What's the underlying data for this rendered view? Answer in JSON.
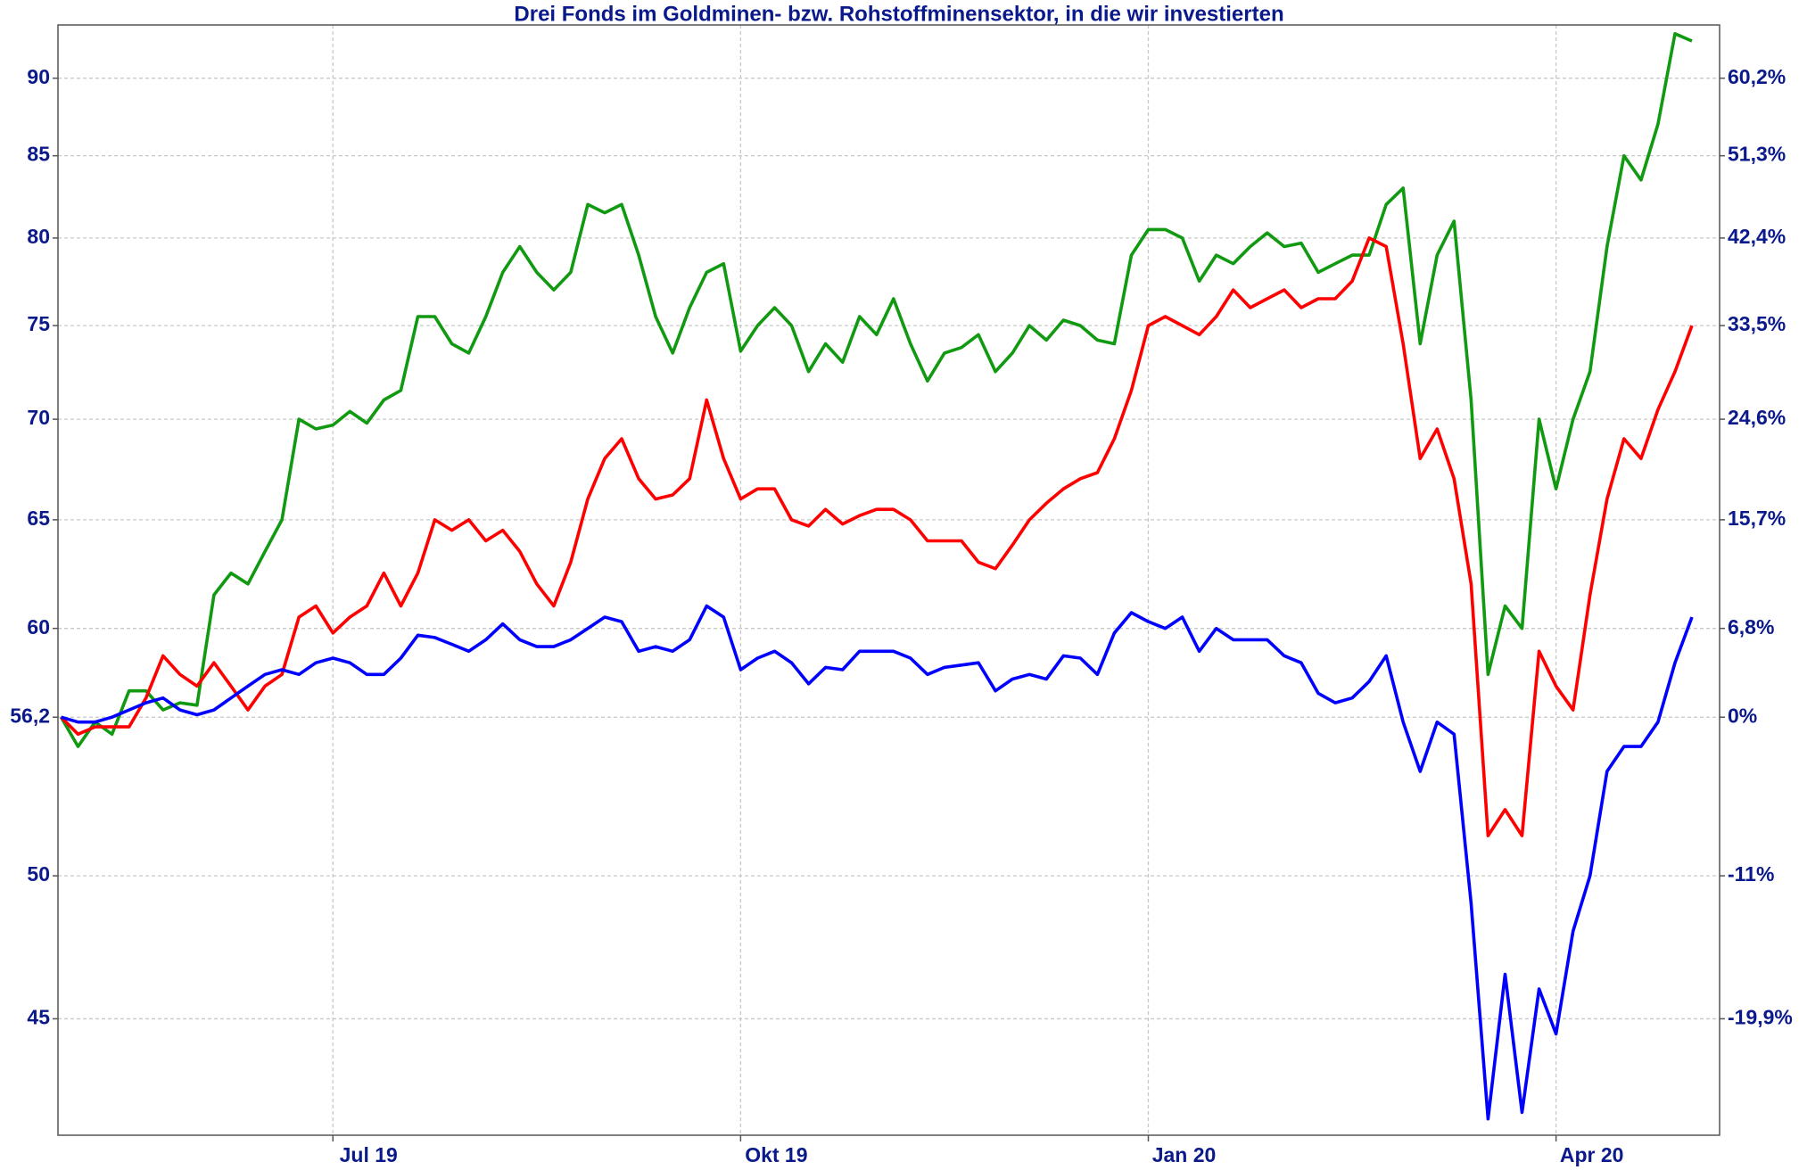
{
  "chart_data": {
    "type": "line",
    "title": "Drei Fonds im Goldminen- bzw. Rohstoffminensektor, in die wir investierten",
    "categories": [
      null,
      null,
      null,
      null,
      null,
      null,
      null,
      null,
      null,
      null,
      null,
      null,
      null,
      null,
      null,
      null,
      "Jul 19",
      null,
      null,
      null,
      null,
      null,
      null,
      null,
      null,
      null,
      null,
      null,
      null,
      null,
      null,
      null,
      null,
      null,
      null,
      null,
      null,
      null,
      null,
      null,
      "Okt 19",
      null,
      null,
      null,
      null,
      null,
      null,
      null,
      null,
      null,
      null,
      null,
      null,
      null,
      null,
      null,
      null,
      null,
      null,
      null,
      null,
      null,
      null,
      null,
      "Jan 20",
      null,
      null,
      null,
      null,
      null,
      null,
      null,
      null,
      null,
      null,
      null,
      null,
      null,
      null,
      null,
      null,
      null,
      null,
      null,
      null,
      null,
      null,
      null,
      "Apr 20",
      null,
      null,
      null,
      null,
      null,
      null,
      null,
      null
    ],
    "series": [
      {
        "color": "#119a11",
        "values": [
          56.2,
          55,
          56,
          55.5,
          57.3,
          57.3,
          56.5,
          56.8,
          56.7,
          61.5,
          62.5,
          62,
          63.5,
          65,
          70,
          69.5,
          69.7,
          70.4,
          69.8,
          71,
          71.5,
          75.5,
          75.5,
          74,
          73.5,
          75.5,
          78,
          79.5,
          78,
          77,
          78,
          82,
          81.5,
          82,
          79,
          75.5,
          73.5,
          76,
          78,
          78.5,
          73.6,
          75,
          76,
          75,
          72.5,
          74,
          73,
          75.5,
          74.5,
          76.5,
          74,
          72,
          73.5,
          73.8,
          74.5,
          72.5,
          73.5,
          75,
          74.2,
          75.3,
          75,
          74.2,
          74,
          79,
          80.5,
          80.5,
          80,
          77.5,
          79,
          78.5,
          79.5,
          80.3,
          79.5,
          79.7,
          78,
          78.5,
          79,
          79,
          82,
          83,
          74,
          79,
          81,
          71,
          58,
          61,
          60,
          70,
          66.5,
          70,
          72.5,
          79.5,
          85,
          83.5,
          87,
          93,
          92.5
        ]
      },
      {
        "color": "#ff0000",
        "values": [
          56.2,
          55.5,
          55.8,
          55.8,
          55.8,
          57,
          58.8,
          58,
          57.5,
          58.5,
          57.5,
          56.5,
          57.5,
          58,
          60.5,
          61,
          59.8,
          60.5,
          61,
          62.5,
          61,
          62.5,
          65,
          64.5,
          65,
          64,
          64.5,
          63.5,
          62,
          61,
          63,
          66,
          68,
          69,
          67,
          66,
          66.2,
          67,
          71,
          68,
          66,
          66.5,
          66.5,
          65,
          64.7,
          65.5,
          64.8,
          65.2,
          65.5,
          65.5,
          65,
          64,
          64,
          64,
          63,
          62.7,
          63.8,
          65,
          65.8,
          66.5,
          67,
          67.3,
          69,
          71.5,
          75,
          75.5,
          75,
          74.5,
          75.5,
          77,
          76,
          76.5,
          77,
          76,
          76.5,
          76.5,
          77.5,
          80,
          79.5,
          74,
          68,
          69.5,
          67,
          62,
          51.5,
          52.5,
          51.5,
          59,
          57.5,
          56.5,
          61.5,
          66,
          69,
          68,
          70.5,
          72.5,
          75
        ]
      },
      {
        "color": "#0000ff",
        "values": [
          56.2,
          56,
          56,
          56.2,
          56.5,
          56.8,
          57,
          56.5,
          56.3,
          56.5,
          57,
          57.5,
          58,
          58.2,
          58,
          58.5,
          58.7,
          58.5,
          58,
          58,
          58.7,
          59.7,
          59.6,
          59.3,
          59,
          59.5,
          60.2,
          59.5,
          59.2,
          59.2,
          59.5,
          60,
          60.5,
          60.3,
          59,
          59.2,
          59,
          59.5,
          61,
          60.5,
          58.2,
          58.7,
          59,
          58.5,
          57.6,
          58.3,
          58.2,
          59,
          59,
          59,
          58.7,
          58,
          58.3,
          58.4,
          58.5,
          57.3,
          57.8,
          58,
          57.8,
          58.8,
          58.7,
          58,
          59.8,
          60.7,
          60.3,
          60,
          60.5,
          59,
          60,
          59.5,
          59.5,
          59.5,
          58.8,
          58.5,
          57.2,
          56.8,
          57,
          57.7,
          58.8,
          56,
          54,
          56,
          55.5,
          49,
          41.8,
          46.5,
          42,
          46,
          44.5,
          48,
          50,
          54,
          55,
          55,
          56,
          58.5,
          60.5
        ]
      }
    ],
    "yscale": "log",
    "ylim": [
      41.3,
      93.6
    ],
    "yticks": [
      45,
      50,
      {
        "value": 56.2,
        "label": "56,2"
      },
      60,
      65,
      70,
      75,
      80,
      85,
      90
    ],
    "y2lim": [
      41.3,
      93.6
    ],
    "y2ticks": [
      {
        "value": 45,
        "label": "-19,9%"
      },
      {
        "value": 50,
        "label": "-11%"
      },
      {
        "value": 56.2,
        "label": "0%"
      },
      {
        "value": 60,
        "label": "6,8%"
      },
      {
        "value": 65,
        "label": "15,7%"
      },
      {
        "value": 70,
        "label": "24,6%"
      },
      {
        "value": 75,
        "label": "33,5%"
      },
      {
        "value": 80,
        "label": "42,4%"
      },
      {
        "value": 85,
        "label": "51,3%"
      },
      {
        "value": 90,
        "label": "60,2%"
      }
    ],
    "grid": true
  }
}
